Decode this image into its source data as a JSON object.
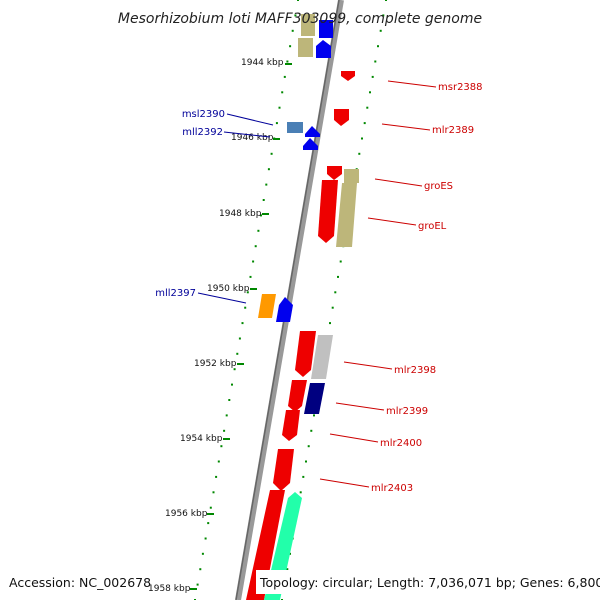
{
  "title": "Mesorhizobium loti MAFF303099, complete genome",
  "footer": {
    "accession": "Accession: NC_002678",
    "topology": "Topology: circular; Length: 7,036,071 bp; Genes: 6,800"
  },
  "kbp_labels": [
    "1944 kbp",
    "1946 kbp",
    "1948 kbp",
    "1950 kbp",
    "1952 kbp",
    "1954 kbp",
    "1956 kbp",
    "1958 kbp"
  ],
  "gene_labels_right": [
    "msr2388",
    "mlr2389",
    "groES",
    "groEL",
    "mlr2398",
    "mlr2399",
    "mlr2400",
    "mlr2403"
  ],
  "gene_labels_left": [
    "msl2390",
    "mll2392",
    "mll2397"
  ],
  "colors": {
    "red": "#ee0000",
    "blue": "#0000ee",
    "khaki": "#bdb67a",
    "steelblue": "#4a7fb5",
    "orange": "#ff9900",
    "navy": "#000080",
    "silver": "#c0c0c0",
    "mint": "#22ffaa",
    "green_tick": "#008800"
  }
}
